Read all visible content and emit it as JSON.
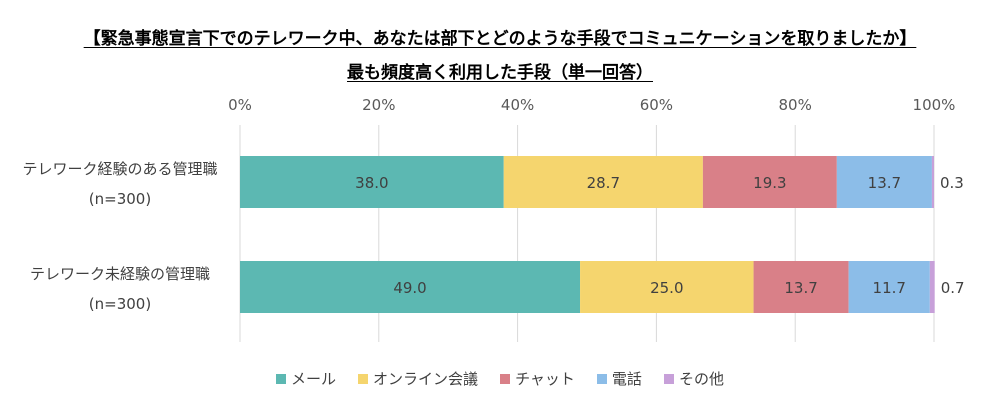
{
  "chart_data": {
    "type": "bar",
    "orientation": "horizontal",
    "stacked": true,
    "title": "【緊急事態宣言下でのテレワーク中、あなたは部下とどのような手段でコミュニケーションを取りましたか】",
    "subtitle": "最も頻度高く利用した手段（単一回答）",
    "x_ticks": [
      "0%",
      "20%",
      "40%",
      "60%",
      "80%",
      "100%"
    ],
    "xlim": [
      0,
      100
    ],
    "grid": true,
    "legend_position": "bottom",
    "categories": [
      {
        "label": "テレワーク経験のある管理職",
        "sublabel": "(n=300)"
      },
      {
        "label": "テレワーク未経験の管理職",
        "sublabel": "(n=300)"
      }
    ],
    "series": [
      {
        "name": "メール",
        "color": "#5cb8b2",
        "values": [
          38.0,
          49.0
        ],
        "labels": [
          "38.0",
          "49.0"
        ]
      },
      {
        "name": "オンライン会議",
        "color": "#f5d56e",
        "values": [
          28.7,
          25.0
        ],
        "labels": [
          "28.7",
          "25.0"
        ]
      },
      {
        "name": "チャット",
        "color": "#d98088",
        "values": [
          19.3,
          13.7
        ],
        "labels": [
          "19.3",
          "13.7"
        ]
      },
      {
        "name": "電話",
        "color": "#8cbde8",
        "values": [
          13.7,
          11.7
        ],
        "labels": [
          "13.7",
          "11.7"
        ]
      },
      {
        "name": "その他",
        "color": "#c7a0d9",
        "values": [
          0.3,
          0.7
        ],
        "labels": [
          "0.3",
          "0.7"
        ]
      }
    ]
  }
}
